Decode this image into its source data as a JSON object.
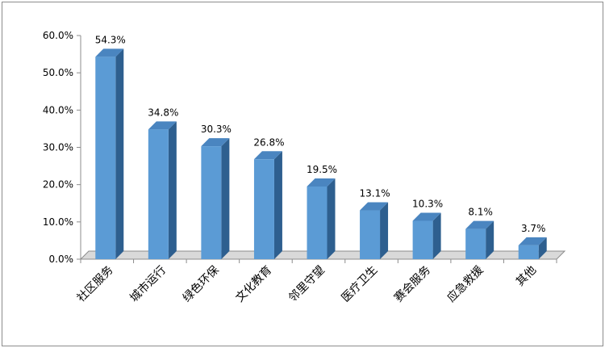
{
  "chart_data": {
    "type": "bar",
    "categories": [
      "社区服务",
      "城市运行",
      "绿色环保",
      "文化教育",
      "邻里守望",
      "医疗卫生",
      "赛会服务",
      "应急救援",
      "其他"
    ],
    "values": [
      54.3,
      34.8,
      30.3,
      26.8,
      19.5,
      13.1,
      10.3,
      8.1,
      3.7
    ],
    "data_labels": [
      "54.3%",
      "34.8%",
      "30.3%",
      "26.8%",
      "19.5%",
      "13.1%",
      "10.3%",
      "8.1%",
      "3.7%"
    ],
    "y_ticks": [
      "0.0%",
      "10.0%",
      "20.0%",
      "30.0%",
      "40.0%",
      "50.0%",
      "60.0%"
    ],
    "ylim": [
      0,
      60
    ],
    "grid": false,
    "legend": "none",
    "style": "3d-column",
    "colors": {
      "bar_front": "#5b9bd5",
      "bar_side": "#2e5f8f",
      "bar_top": "#4a85c0",
      "floor": "#d9d9d9"
    }
  }
}
